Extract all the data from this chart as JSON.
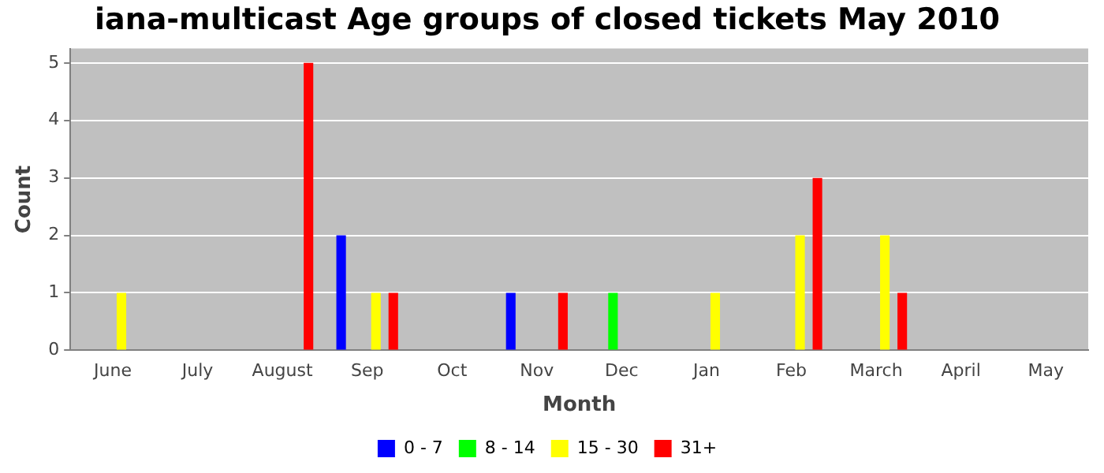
{
  "chart_data": {
    "type": "bar",
    "title": "iana-multicast Age groups of closed tickets May 2010",
    "xlabel": "Month",
    "ylabel": "Count",
    "categories": [
      "June",
      "July",
      "August",
      "Sep",
      "Oct",
      "Nov",
      "Dec",
      "Jan",
      "Feb",
      "March",
      "April",
      "May"
    ],
    "series": [
      {
        "name": "0 - 7",
        "color": "#0000ff",
        "values": [
          0,
          0,
          0,
          2,
          0,
          1,
          0,
          0,
          0,
          0,
          0,
          0
        ]
      },
      {
        "name": "8 - 14",
        "color": "#00ff00",
        "values": [
          0,
          0,
          0,
          0,
          0,
          0,
          1,
          0,
          0,
          0,
          0,
          0
        ]
      },
      {
        "name": "15 - 30",
        "color": "#ffff00",
        "values": [
          1,
          0,
          0,
          1,
          0,
          0,
          0,
          1,
          2,
          2,
          0,
          0
        ]
      },
      {
        "name": "31+",
        "color": "#ff0000",
        "values": [
          0,
          0,
          5,
          1,
          0,
          1,
          0,
          0,
          3,
          1,
          0,
          0
        ]
      }
    ],
    "ylim": [
      0,
      5.25
    ],
    "yticks": [
      0,
      1,
      2,
      3,
      4,
      5
    ],
    "grid": "y",
    "legend": "bottom"
  }
}
